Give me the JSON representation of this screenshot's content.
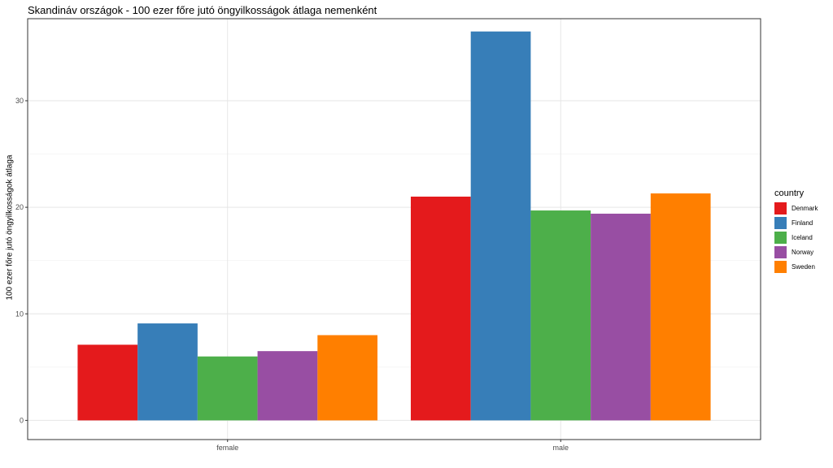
{
  "chart_data": {
    "type": "bar",
    "title": "Skandináv országok - 100 ezer főre jutó öngyilkosságok átlaga nemenként",
    "xlabel": "",
    "ylabel": "100 ezer főre jutó öngyilkosságok átlaga",
    "categories": [
      "female",
      "male"
    ],
    "ylim": [
      -1.8,
      37.7
    ],
    "yticks": [
      0,
      10,
      20,
      30
    ],
    "grid": true,
    "legend": {
      "title": "country",
      "position": "right"
    },
    "series": [
      {
        "name": "Denmark",
        "color": "#E41A1C",
        "values": [
          7.1,
          21.0
        ]
      },
      {
        "name": "Finland",
        "color": "#377EB8",
        "values": [
          9.1,
          36.5
        ]
      },
      {
        "name": "Iceland",
        "color": "#4DAF4A",
        "values": [
          6.0,
          19.7
        ]
      },
      {
        "name": "Norway",
        "color": "#984EA3",
        "values": [
          6.5,
          19.4
        ]
      },
      {
        "name": "Sweden",
        "color": "#FF7F00",
        "values": [
          8.0,
          21.3
        ]
      }
    ]
  }
}
